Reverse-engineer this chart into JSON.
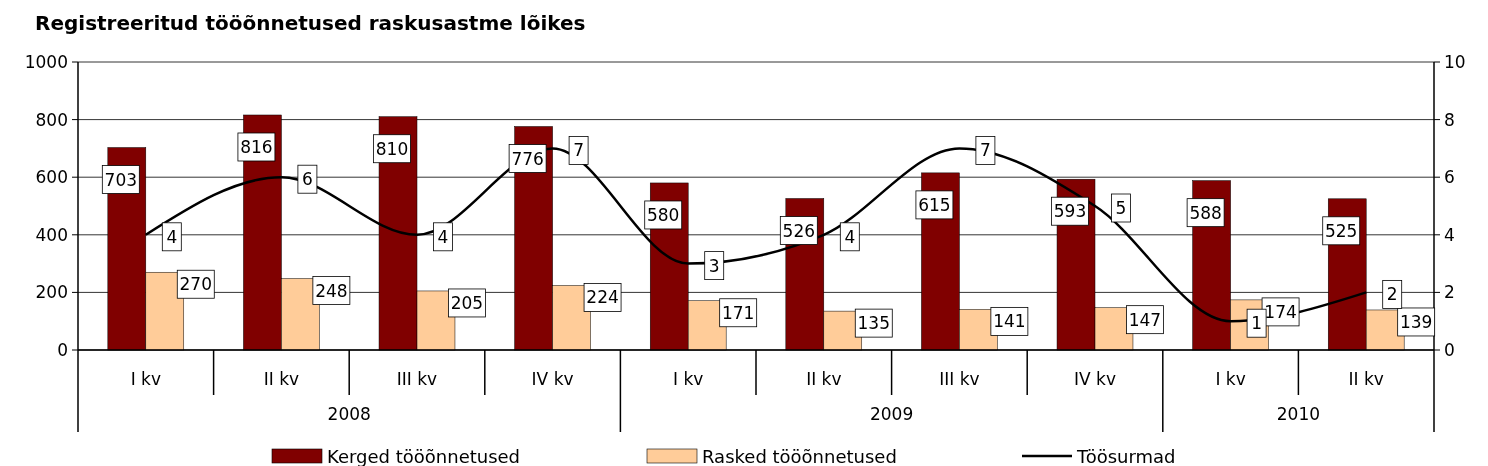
{
  "chart_data": {
    "type": "bar",
    "title": "Registreeritud tööõnnetused raskusastme lõikes",
    "categories": [
      "I kv",
      "II kv",
      "III kv",
      "IV kv",
      "I kv",
      "II kv",
      "III kv",
      "IV kv",
      "I kv",
      "II kv"
    ],
    "series": [
      {
        "name": "Kerged tööõnnetused",
        "color": "#800000",
        "values": [
          703,
          816,
          810,
          776,
          580,
          526,
          615,
          593,
          588,
          525
        ]
      },
      {
        "name": "Rasked tööõnnetused",
        "color": "#ffcc99",
        "values": [
          270,
          248,
          205,
          224,
          171,
          135,
          141,
          147,
          174,
          139
        ]
      },
      {
        "name": "Töösurmad",
        "type": "line",
        "axis": "y2",
        "color": "#000000",
        "values": [
          4,
          6,
          4,
          7,
          3,
          4,
          7,
          5,
          1,
          2
        ]
      }
    ],
    "annotations": [
      "2008",
      "2009",
      "2010"
    ],
    "ylim": [
      0,
      1000
    ],
    "yticks": [
      0,
      200,
      400,
      600,
      800,
      1000
    ],
    "y2lim": [
      0,
      10
    ],
    "y2ticks": [
      0,
      2,
      4,
      6,
      8,
      10
    ],
    "grid": "y",
    "legend": "bottom",
    "data_labels": true
  }
}
